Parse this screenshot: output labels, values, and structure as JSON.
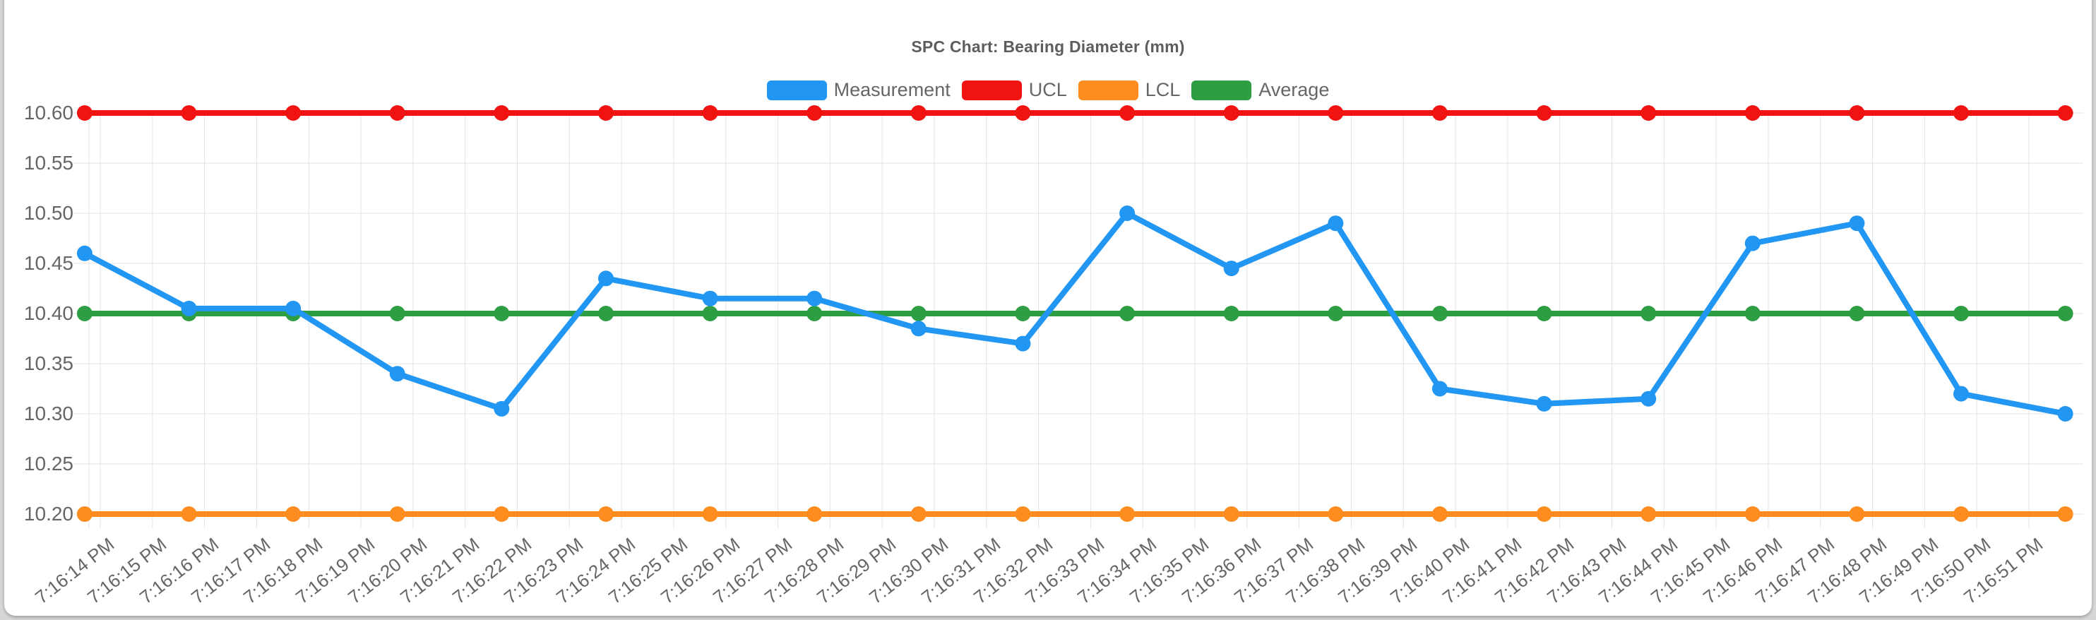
{
  "page": {
    "background_color": "#d6d6d6",
    "card_color": "#ffffff"
  },
  "chart_data": {
    "type": "line",
    "title": "SPC Chart: Bearing Diameter (mm)",
    "legend_position": "top-center",
    "grid": true,
    "legend": [
      {
        "label": "Measurement",
        "color": "#2196f3"
      },
      {
        "label": "UCL",
        "color": "#f11212"
      },
      {
        "label": "LCL",
        "color": "#ff8c1e"
      },
      {
        "label": "Average",
        "color": "#2e9e44"
      }
    ],
    "y_ticks": [
      10.2,
      10.25,
      10.3,
      10.35,
      10.4,
      10.45,
      10.5,
      10.55,
      10.6
    ],
    "ylim": [
      10.185,
      10.61
    ],
    "y_tick_decimals": 2,
    "x_tick_labels": [
      "7:16:14 PM",
      "7:16:15 PM",
      "7:16:16 PM",
      "7:16:17 PM",
      "7:16:18 PM",
      "7:16:19 PM",
      "7:16:20 PM",
      "7:16:21 PM",
      "7:16:22 PM",
      "7:16:23 PM",
      "7:16:24 PM",
      "7:16:25 PM",
      "7:16:26 PM",
      "7:16:27 PM",
      "7:16:28 PM",
      "7:16:29 PM",
      "7:16:30 PM",
      "7:16:31 PM",
      "7:16:32 PM",
      "7:16:33 PM",
      "7:16:34 PM",
      "7:16:35 PM",
      "7:16:36 PM",
      "7:16:37 PM",
      "7:16:38 PM",
      "7:16:39 PM",
      "7:16:40 PM",
      "7:16:41 PM",
      "7:16:42 PM",
      "7:16:43 PM",
      "7:16:44 PM",
      "7:16:45 PM",
      "7:16:46 PM",
      "7:16:47 PM",
      "7:16:48 PM",
      "7:16:49 PM",
      "7:16:50 PM",
      "7:16:51 PM"
    ],
    "x_mapping": {
      "note": "time axis: one tick per second; measurement sampled every 2 s starting just before first tick",
      "first_point_offset_ticks": -0.3,
      "step_ticks": 2,
      "n_points": 20
    },
    "series": [
      {
        "name": "UCL",
        "color": "#f11212",
        "constant": 10.6
      },
      {
        "name": "LCL",
        "color": "#ff8c1e",
        "constant": 10.2
      },
      {
        "name": "Average",
        "color": "#2e9e44",
        "constant": 10.4
      },
      {
        "name": "Measurement",
        "color": "#2196f3",
        "values": [
          10.46,
          10.405,
          10.405,
          10.34,
          10.305,
          10.435,
          10.415,
          10.415,
          10.385,
          10.37,
          10.5,
          10.445,
          10.49,
          10.325,
          10.31,
          10.315,
          10.47,
          10.49,
          10.32,
          10.3
        ]
      }
    ]
  }
}
